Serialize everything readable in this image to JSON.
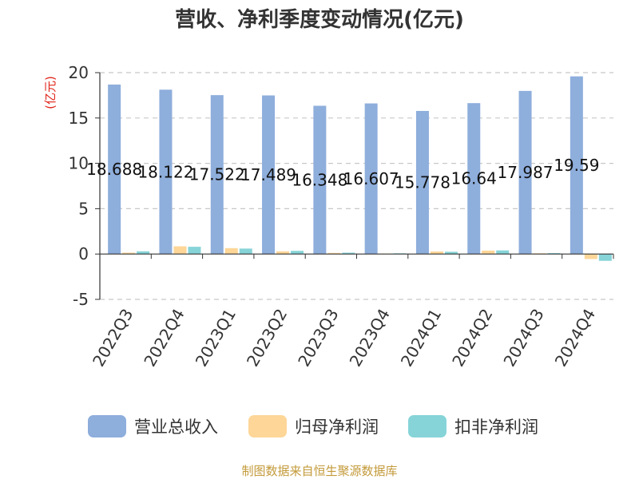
{
  "chart_data": {
    "type": "bar",
    "title": "营收、净利季度变动情况(亿元)",
    "ylabel": "(亿元)",
    "xlabel": "",
    "ylim": [
      -5,
      20
    ],
    "yticks": [
      -5,
      0,
      5,
      10,
      15,
      20
    ],
    "grid": true,
    "legend_position": "bottom",
    "categories": [
      "2022Q3",
      "2022Q4",
      "2023Q1",
      "2023Q2",
      "2023Q3",
      "2023Q4",
      "2024Q1",
      "2024Q2",
      "2024Q3",
      "2024Q4"
    ],
    "series": [
      {
        "name": "营业总收入",
        "color": "#8eaedc",
        "values": [
          18.688,
          18.122,
          17.522,
          17.489,
          16.348,
          16.607,
          15.778,
          16.64,
          17.987,
          19.59
        ]
      },
      {
        "name": "归母净利润",
        "color": "#fdd698",
        "values": [
          0.15,
          0.85,
          0.65,
          0.3,
          0.12,
          0.06,
          0.28,
          0.38,
          0.08,
          -0.55
        ]
      },
      {
        "name": "扣非净利润",
        "color": "#86d4d8",
        "values": [
          0.3,
          0.8,
          0.6,
          0.35,
          0.15,
          0.08,
          0.25,
          0.4,
          0.1,
          -0.75
        ]
      }
    ],
    "data_labels": [
      "18.688",
      "18.122",
      "17.522",
      "17.489",
      "16.348",
      "16.607",
      "15.778",
      "16.64",
      "17.987",
      "19.59"
    ],
    "source": "制图数据来自恒生聚源数据库"
  }
}
